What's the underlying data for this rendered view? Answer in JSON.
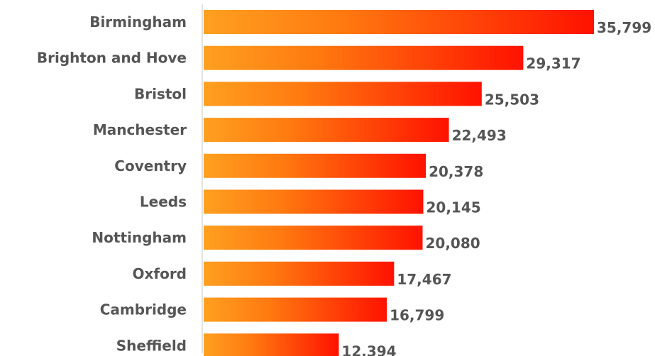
{
  "chart_data": {
    "type": "bar",
    "orientation": "horizontal",
    "categories": [
      "Birmingham",
      "Brighton and Hove",
      "Bristol",
      "Manchester",
      "Coventry",
      "Leeds",
      "Nottingham",
      "Oxford",
      "Cambridge",
      "Sheffield"
    ],
    "values": [
      35799,
      29317,
      25503,
      22493,
      20378,
      20145,
      20080,
      17467,
      16799,
      12394
    ],
    "value_labels": [
      "35,799",
      "29,317",
      "25,503",
      "22,493",
      "20,378",
      "20,145",
      "20,080",
      "17,467",
      "16,799",
      "12,394"
    ],
    "title": "",
    "xlabel": "",
    "ylabel": "",
    "xlim": [
      0,
      36000
    ],
    "grid": false,
    "legend": "none",
    "colors": {
      "bar_gradient_start": "#ffa020",
      "bar_gradient_mid": "#ff7a10",
      "bar_gradient_end": "#ff1200",
      "label_color": "#555555",
      "axis_color": "#d9d9d9"
    }
  }
}
